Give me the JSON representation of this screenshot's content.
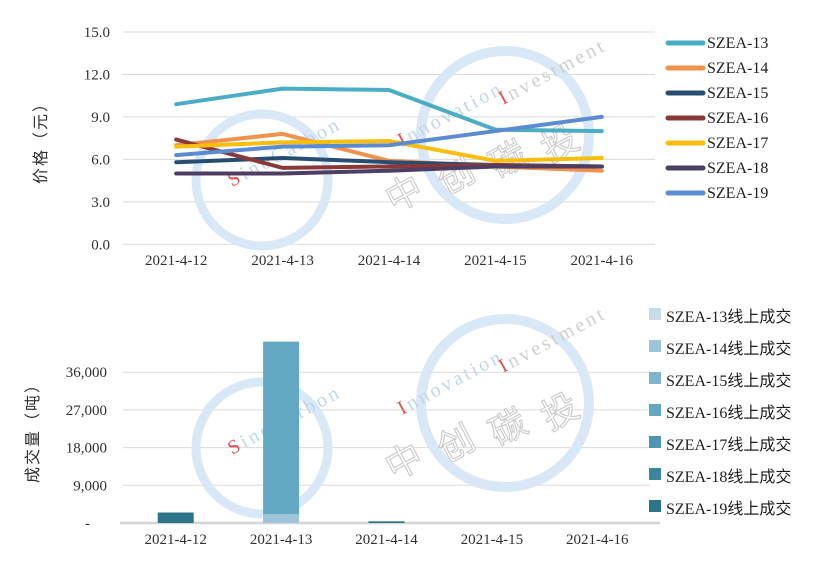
{
  "watermark": {
    "word1": "SinoCarbon",
    "word2": "Innovation",
    "word3": "Investment",
    "cn_chars": [
      "中",
      "创",
      "碳",
      "投"
    ],
    "ring_color": "#D9E8F6",
    "word_color": "#BFD6EC",
    "word3_color": "#CFCFCF",
    "accent_color": "#E05050",
    "cn_fill": "#FFFFFF",
    "cn_stroke": "#C9C9C9"
  },
  "style": {
    "grid_color": "#DADADA",
    "baseline_color": "#D4D4D4",
    "tick_text_color": "#303030",
    "legend_text_color": "#1f1f1f"
  },
  "chart_data": [
    {
      "id": "price",
      "type": "line",
      "title": "",
      "xlabel": "",
      "ylabel": "价格（元）",
      "categories": [
        "2021-4-12",
        "2021-4-13",
        "2021-4-14",
        "2021-4-15",
        "2021-4-16"
      ],
      "ylim": [
        0,
        15
      ],
      "ytick_values": [
        15,
        12,
        9,
        6,
        3,
        0
      ],
      "ytick_labels": [
        "15.0",
        "12.0",
        "9.0",
        "6.0",
        "3.0",
        "0.0"
      ],
      "grid": true,
      "legend_position": "right",
      "series": [
        {
          "name": "SZEA-13",
          "color": "#4BACC6",
          "values": [
            9.9,
            11.0,
            10.9,
            8.1,
            8.0
          ]
        },
        {
          "name": "SZEA-14",
          "color": "#F0914D",
          "values": [
            7.0,
            7.8,
            5.9,
            5.5,
            5.2
          ]
        },
        {
          "name": "SZEA-15",
          "color": "#274E72",
          "values": [
            5.8,
            6.1,
            5.8,
            5.6,
            5.5
          ]
        },
        {
          "name": "SZEA-16",
          "color": "#8B3936",
          "values": [
            7.4,
            5.4,
            5.5,
            5.6,
            5.5
          ]
        },
        {
          "name": "SZEA-17",
          "color": "#F7BE0D",
          "values": [
            6.9,
            7.2,
            7.3,
            5.9,
            6.1
          ]
        },
        {
          "name": "SZEA-18",
          "color": "#4D3E63",
          "values": [
            5.0,
            5.0,
            5.2,
            5.5,
            5.5
          ]
        },
        {
          "name": "SZEA-19",
          "color": "#5B8BD0",
          "values": [
            6.3,
            6.9,
            7.0,
            8.0,
            9.0
          ]
        }
      ]
    },
    {
      "id": "volume",
      "type": "bar",
      "stacked": true,
      "title": "",
      "xlabel": "",
      "ylabel": "成交量（吨）",
      "categories": [
        "2021-4-12",
        "2021-4-13",
        "2021-4-14",
        "2021-4-15",
        "2021-4-16"
      ],
      "ylim": [
        0,
        45000
      ],
      "ytick_values": [
        36000,
        27000,
        18000,
        9000,
        0
      ],
      "ytick_labels": [
        "36,000",
        "27,000",
        "18,000",
        "9,000",
        "-"
      ],
      "grid": true,
      "legend_position": "right",
      "series": [
        {
          "name": "SZEA-13线上成交",
          "color": "#C8DCE8",
          "values": [
            0,
            0,
            0,
            0,
            0
          ]
        },
        {
          "name": "SZEA-14线上成交",
          "color": "#9DC4D8",
          "values": [
            0,
            2100,
            0,
            0,
            0
          ]
        },
        {
          "name": "SZEA-15线上成交",
          "color": "#7FB5CC",
          "values": [
            0,
            0,
            0,
            0,
            0
          ]
        },
        {
          "name": "SZEA-16线上成交",
          "color": "#62A8C3",
          "values": [
            0,
            41200,
            0,
            0,
            0
          ]
        },
        {
          "name": "SZEA-17线上成交",
          "color": "#4D96B2",
          "values": [
            0,
            0,
            0,
            0,
            0
          ]
        },
        {
          "name": "SZEA-18线上成交",
          "color": "#3A86A0",
          "values": [
            0,
            0,
            0,
            0,
            0
          ]
        },
        {
          "name": "SZEA-19线上成交",
          "color": "#2C7489",
          "values": [
            2500,
            0,
            400,
            0,
            0
          ]
        }
      ]
    }
  ]
}
